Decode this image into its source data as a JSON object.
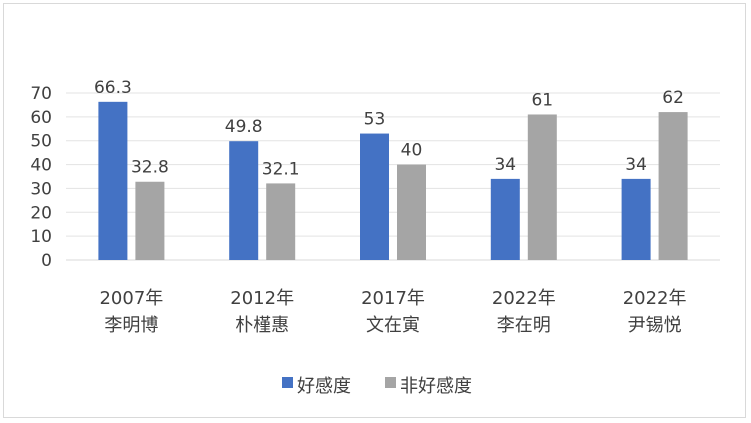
{
  "chart_data": {
    "type": "bar",
    "categories": [
      [
        "2007年",
        "李明博"
      ],
      [
        "2012年",
        "朴槿惠"
      ],
      [
        "2017年",
        "文在寅"
      ],
      [
        "2022年",
        "李在明"
      ],
      [
        "2022年",
        "尹锡悦"
      ]
    ],
    "series": [
      {
        "name": "好感度",
        "values": [
          66.3,
          49.8,
          53,
          34,
          34
        ],
        "labels": [
          "66.3",
          "49.8",
          "53",
          "34",
          "34"
        ],
        "color": "#4472c4"
      },
      {
        "name": "非好感度",
        "values": [
          32.8,
          32.1,
          40,
          61,
          62
        ],
        "labels": [
          "32.8",
          "32.1",
          "40",
          "61",
          "62"
        ],
        "color": "#a5a5a5"
      }
    ],
    "ylim": [
      0,
      70
    ],
    "yticks": [
      0,
      10,
      20,
      30,
      40,
      50,
      60,
      70
    ],
    "grid": true,
    "legend_position": "bottom",
    "title": "",
    "xlabel": "",
    "ylabel": ""
  }
}
